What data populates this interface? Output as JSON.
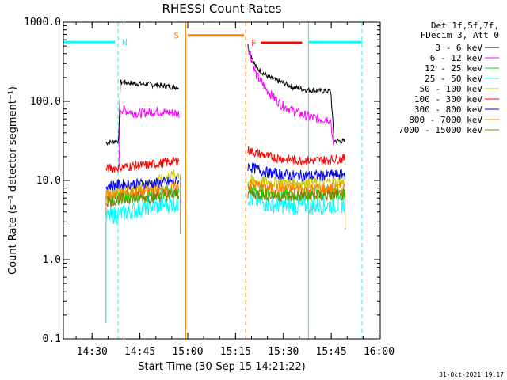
{
  "chart_data": {
    "type": "line",
    "title": "RHESSI Count Rates",
    "xlabel": "Start Time (30-Sep-15 14:21:22)",
    "ylabel": "Count Rate (s⁻¹ detector segment⁻¹)",
    "ylog": true,
    "ylim": [
      0.1,
      1000.0
    ],
    "xlim_minutes": [
      -0.37,
      99.0
    ],
    "x_ticks": [
      {
        "m": 8.63,
        "label": "14:30"
      },
      {
        "m": 23.63,
        "label": "14:45"
      },
      {
        "m": 38.63,
        "label": "15:00"
      },
      {
        "m": 53.63,
        "label": "15:15"
      },
      {
        "m": 68.63,
        "label": "15:30"
      },
      {
        "m": 83.63,
        "label": "15:45"
      },
      {
        "m": 98.63,
        "label": "16:00"
      }
    ],
    "y_ticks": [
      {
        "v": 0.1,
        "label": "0.1"
      },
      {
        "v": 1.0,
        "label": "1.0"
      },
      {
        "v": 10.0,
        "label": "10.0"
      },
      {
        "v": 100.0,
        "label": "100.0"
      },
      {
        "v": 1000.0,
        "label": "1000.0"
      }
    ],
    "legend": {
      "header": [
        "Det 1f,5f,7f,",
        "FDecim 3, Att 0"
      ],
      "placement": "right"
    },
    "series": [
      {
        "name": "3 - 6 keV",
        "color": "#000000",
        "seg1": {
          "x": [
            13.0,
            17.0,
            17.5,
            29.0,
            36.0
          ],
          "y": [
            30,
            32,
            175,
            160,
            150
          ]
        },
        "seg2": {
          "x": [
            57.5,
            60,
            64,
            68,
            72,
            76,
            80,
            83.5,
            84.5,
            88
          ],
          "y": [
            500,
            270,
            200,
            175,
            150,
            140,
            135,
            135,
            32,
            31
          ]
        }
      },
      {
        "name": "6 - 12 keV",
        "color": "#ff00ff",
        "seg1": {
          "x": [
            17.0,
            17.5,
            23,
            29,
            36
          ],
          "y": [
            14,
            80,
            70,
            75,
            70
          ]
        },
        "seg2": {
          "x": [
            57.5,
            60,
            64,
            68,
            72,
            76,
            80,
            83.5,
            84.5
          ],
          "y": [
            500,
            220,
            130,
            90,
            75,
            65,
            60,
            60,
            20
          ]
        }
      },
      {
        "name": "12 - 25 keV",
        "color": "#00e000",
        "seg1": {
          "x": [
            13.0,
            20,
            28,
            36
          ],
          "y": [
            6,
            6.3,
            6.8,
            7.2
          ]
        },
        "seg2": {
          "x": [
            57.5,
            64,
            72,
            80,
            88
          ],
          "y": [
            8,
            7,
            6.5,
            6.8,
            7
          ]
        }
      },
      {
        "name": "25 - 50 keV",
        "color": "#00ffff",
        "seg1": {
          "x": [
            13.0,
            18,
            26,
            36
          ],
          "y": [
            3.5,
            3.8,
            4.6,
            5.2
          ]
        },
        "seg2": {
          "x": [
            57.5,
            64,
            72,
            80,
            88
          ],
          "y": [
            6,
            5,
            4.7,
            4.8,
            5
          ]
        }
      },
      {
        "name": "50 - 100 keV",
        "color": "#c8c800",
        "seg1": {
          "x": [
            13.0,
            20,
            28,
            32,
            36
          ],
          "y": [
            7,
            8,
            9,
            11,
            12
          ]
        },
        "seg2": {
          "x": [
            57.5,
            64,
            72,
            80,
            88
          ],
          "y": [
            10,
            9.5,
            9.5,
            9.5,
            9.5
          ]
        }
      },
      {
        "name": "100 - 300 keV",
        "color": "#ff0000",
        "seg1": {
          "x": [
            13.0,
            20,
            28,
            36
          ],
          "y": [
            14,
            15,
            16,
            18
          ]
        },
        "seg2": {
          "x": [
            57.5,
            64,
            72,
            80,
            88
          ],
          "y": [
            24,
            20,
            18,
            18,
            19
          ]
        }
      },
      {
        "name": "300 - 800 keV",
        "color": "#0000ff",
        "seg1": {
          "x": [
            13.0,
            20,
            28,
            36
          ],
          "y": [
            8.5,
            9,
            9.2,
            9.8
          ]
        },
        "seg2": {
          "x": [
            57.5,
            64,
            72,
            80,
            88
          ],
          "y": [
            15,
            12.5,
            11.5,
            11.5,
            12
          ]
        }
      },
      {
        "name": "800 - 7000 keV",
        "color": "#ff8000",
        "seg1": {
          "x": [
            13.0,
            20,
            28,
            36
          ],
          "y": [
            6.5,
            7,
            7.5,
            8.2
          ]
        },
        "seg2": {
          "x": [
            57.5,
            64,
            72,
            80,
            88
          ],
          "y": [
            9,
            8,
            7.8,
            7.8,
            8
          ]
        }
      },
      {
        "name": "7000 - 15000 keV",
        "color": "#808000",
        "seg1": {
          "x": [
            13.0,
            20,
            28,
            36
          ],
          "y": [
            5.5,
            6,
            6.2,
            6.8
          ]
        },
        "seg2": {
          "x": [
            57.5,
            64,
            72,
            80,
            88
          ],
          "y": [
            7,
            6.5,
            6.3,
            6.4,
            6.5
          ]
        }
      }
    ],
    "annotations": {
      "night_label": "N",
      "saa_label": "S",
      "flare_label": "F",
      "night_color": "#00ffff",
      "saa_color": "#ff8000",
      "flare_color": "#ff0000",
      "night_bars": [
        [
          -0.37,
          16.8
        ],
        [
          76.5,
          93.3
        ]
      ],
      "night_marks": [
        16.8,
        76.5,
        93.3
      ],
      "saa_bar": [
        38.6,
        56.8
      ],
      "saa_marks": [
        38.0,
        56.8
      ],
      "flare_bar": [
        61.5,
        74.5
      ],
      "flare_bar_y": 550,
      "night_bar_y": 560,
      "saa_bar_y": 680
    },
    "grid": false
  },
  "timestamp": "31-Oct-2021 19:17"
}
